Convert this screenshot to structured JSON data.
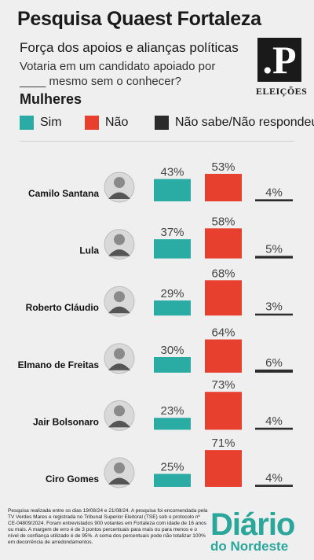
{
  "header": {
    "title": "Pesquisa Quaest Fortaleza",
    "subtitle": "Força dos apoios e alianças políticas",
    "question": "Votaria em um candidato apoiado por ____ mesmo sem o conhecer?",
    "segment": "Mulheres"
  },
  "logo": {
    "letter": ".P",
    "caption": "ELEIÇÕES"
  },
  "legend": [
    {
      "label": "Sim",
      "color": "#2aaba3"
    },
    {
      "label": "Não",
      "color": "#e8402f"
    },
    {
      "label": "Não sabe/Não respondeu",
      "color": "#2b2b2b"
    }
  ],
  "chart_data": {
    "type": "bar",
    "categories": [
      "Camilo Santana",
      "Lula",
      "Roberto Cláudio",
      "Elmano de Freitas",
      "Jair Bolsonaro",
      "Ciro Gomes"
    ],
    "series": [
      {
        "name": "Sim",
        "values": [
          43,
          37,
          29,
          30,
          23,
          25
        ],
        "labels": [
          "43%",
          "37%",
          "29%",
          "30%",
          "23%",
          "25%"
        ]
      },
      {
        "name": "Não",
        "values": [
          53,
          58,
          68,
          64,
          73,
          71
        ],
        "labels": [
          "53%",
          "58%",
          "68%",
          "64%",
          "73%",
          "71%"
        ]
      },
      {
        "name": "Não sabe/Não respondeu",
        "values": [
          4,
          5,
          3,
          6,
          4,
          4
        ],
        "labels": [
          "4%",
          "5%",
          "3%",
          "6%",
          "4%",
          "4%"
        ]
      }
    ],
    "colors": [
      "#2aaba3",
      "#e8402f",
      "#2b2b2b"
    ]
  },
  "footnote": "Pesquisa realizada entre os dias 19/08/24 e 21/08/24. A pesquisa foi encomendada pela TV Verdes Mares e registrada no Tribunal Superior Eleitoral (TSE) sob o protocolo nº CE-04809/2024. Foram entrevistados 900 votantes em Fortaleza com idade de 16 anos ou mais. A margem de erro é de 3 pontos percentuais para mais ou para menos e o nível de confiança utilizado é de 95%. A soma dos percentuais pode não totalizar 100% em decorrência de arredondamentos.",
  "brand": {
    "line1": "Diário",
    "line2": "do Nordeste"
  }
}
